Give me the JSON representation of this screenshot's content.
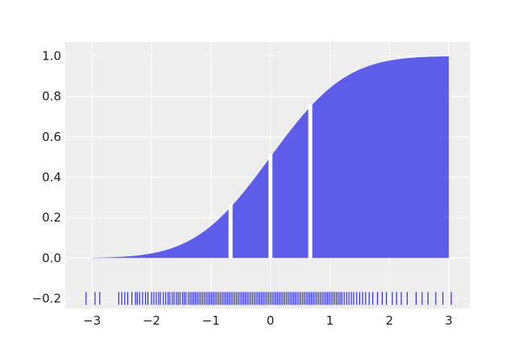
{
  "chart_data": {
    "type": "area",
    "title": "",
    "xlabel": "",
    "ylabel": "",
    "xlim": [
      -3.45,
      3.35
    ],
    "ylim": [
      -0.25,
      1.07
    ],
    "grid": true,
    "x_ticks": [
      -3,
      -2,
      -1,
      0,
      1,
      2,
      3
    ],
    "x_tick_labels": [
      "−3",
      "−2",
      "−1",
      "0",
      "1",
      "2",
      "3"
    ],
    "y_ticks": [
      -0.2,
      0.0,
      0.2,
      0.4,
      0.6,
      0.8,
      1.0
    ],
    "y_tick_labels": [
      "−0.2",
      "0.0",
      "0.2",
      "0.4",
      "0.6",
      "0.8",
      "1.0"
    ],
    "curve": {
      "kind": "normal-cdf",
      "x_range": [
        -3.0,
        3.0
      ],
      "fill_color": "#4c4ce8",
      "fill_opacity": 0.9
    },
    "quantile_splits": [
      -0.67,
      0.0,
      0.67
    ],
    "rug": {
      "y": -0.2,
      "color": "#3030e0",
      "x": [
        -3.1,
        -2.95,
        -2.87,
        -2.55,
        -2.5,
        -2.45,
        -2.4,
        -2.33,
        -2.27,
        -2.24,
        -2.2,
        -2.15,
        -2.1,
        -2.06,
        -2.0,
        -1.96,
        -1.92,
        -1.88,
        -1.85,
        -1.8,
        -1.76,
        -1.72,
        -1.69,
        -1.65,
        -1.62,
        -1.58,
        -1.55,
        -1.52,
        -1.48,
        -1.45,
        -1.42,
        -1.38,
        -1.35,
        -1.32,
        -1.29,
        -1.26,
        -1.23,
        -1.2,
        -1.17,
        -1.14,
        -1.11,
        -1.08,
        -1.05,
        -1.02,
        -0.99,
        -0.96,
        -0.93,
        -0.9,
        -0.87,
        -0.84,
        -0.81,
        -0.78,
        -0.75,
        -0.72,
        -0.69,
        -0.66,
        -0.63,
        -0.6,
        -0.57,
        -0.54,
        -0.51,
        -0.48,
        -0.45,
        -0.42,
        -0.39,
        -0.36,
        -0.33,
        -0.3,
        -0.27,
        -0.24,
        -0.21,
        -0.18,
        -0.15,
        -0.12,
        -0.09,
        -0.06,
        -0.03,
        0.0,
        0.03,
        0.06,
        0.09,
        0.12,
        0.15,
        0.18,
        0.21,
        0.24,
        0.27,
        0.3,
        0.33,
        0.36,
        0.39,
        0.42,
        0.45,
        0.48,
        0.51,
        0.54,
        0.57,
        0.6,
        0.63,
        0.66,
        0.69,
        0.72,
        0.75,
        0.78,
        0.81,
        0.84,
        0.87,
        0.9,
        0.93,
        0.96,
        0.99,
        1.02,
        1.05,
        1.08,
        1.11,
        1.14,
        1.17,
        1.2,
        1.24,
        1.28,
        1.32,
        1.36,
        1.4,
        1.45,
        1.5,
        1.55,
        1.6,
        1.66,
        1.72,
        1.8,
        1.88,
        1.95,
        2.05,
        2.12,
        2.2,
        2.3,
        2.45,
        2.55,
        2.65,
        2.78,
        2.9,
        3.04
      ]
    }
  }
}
